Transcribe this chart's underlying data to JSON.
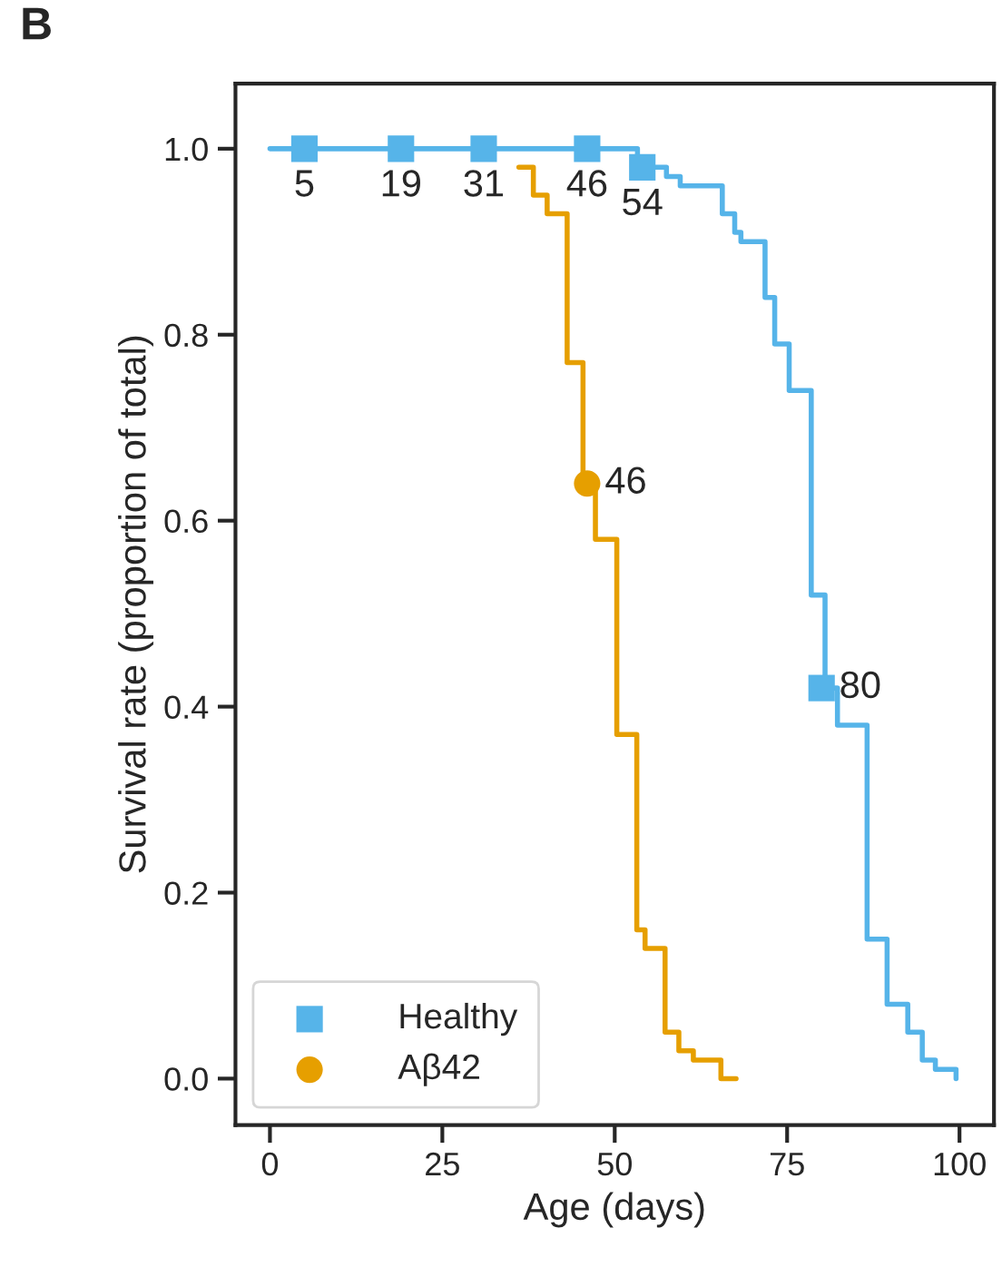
{
  "chart_data": {
    "type": "step",
    "title": "B",
    "xlabel": "Age (days)",
    "ylabel": "Survival rate (proportion of total)",
    "xlim": [
      -5,
      105
    ],
    "xticks": [
      0,
      25,
      50,
      75,
      100
    ],
    "ylim": [
      -0.05,
      1.07
    ],
    "yticks": [
      {
        "value": 0,
        "label": "0.0"
      },
      {
        "value": 0.2,
        "label": "0.2"
      },
      {
        "value": 0.4,
        "label": "0.4"
      },
      {
        "value": 0.6,
        "label": "0.6"
      },
      {
        "value": 0.8,
        "label": "0.8"
      },
      {
        "value": 1,
        "label": "1.0"
      }
    ],
    "grid": false,
    "legend": "bottom left",
    "series": [
      {
        "color": "#e69f00",
        "x": [
          36.1,
          38.2,
          40.2,
          43.1,
          45.4,
          47.2,
          50.3,
          53.2,
          54.4,
          57.3,
          59.3,
          61.4,
          65.4,
          67.6
        ],
        "values": [
          0.98,
          0.95,
          0.93,
          0.77,
          0.64,
          0.58,
          0.37,
          0.16,
          0.14,
          0.05,
          0.03,
          0.02,
          0.0,
          0.0
        ]
      },
      {
        "color": "#56b4e9",
        "x": [
          0,
          53.3,
          57.5,
          59.5,
          65.6,
          67.4,
          68.3,
          71.8,
          73.2,
          75.3,
          78.5,
          80.5,
          82.3,
          86.6,
          89.5,
          92.5,
          94.6,
          96.5,
          99.5
        ],
        "values": [
          1.0,
          0.98,
          0.97,
          0.96,
          0.93,
          0.91,
          0.9,
          0.84,
          0.79,
          0.74,
          0.52,
          0.42,
          0.38,
          0.15,
          0.08,
          0.05,
          0.02,
          0.01,
          0.0
        ]
      },
      {
        "type": "scatter",
        "name": "Healthy",
        "marker": "square",
        "color": "#56b4e9",
        "x": [
          5,
          19,
          31,
          46,
          54,
          80
        ],
        "values": [
          1.0,
          1.0,
          1.0,
          1.0,
          0.98,
          0.42
        ]
      },
      {
        "type": "scatter",
        "name": "Aβ42",
        "marker": "circle",
        "color": "#e69f00",
        "x": [
          46
        ],
        "values": [
          0.64
        ]
      }
    ],
    "annotations": [
      {
        "text": "5",
        "x": 5,
        "y": 1.0
      },
      {
        "text": "19",
        "x": 19,
        "y": 1.0
      },
      {
        "text": "31",
        "x": 31,
        "y": 1.0
      },
      {
        "text": "46",
        "x": 46,
        "y": 1.0
      },
      {
        "text": "54",
        "x": 54,
        "y": 0.98
      },
      {
        "text": "80",
        "x": 80,
        "y": 0.42
      },
      {
        "text": "46",
        "x": 46,
        "y": 0.64
      }
    ]
  }
}
